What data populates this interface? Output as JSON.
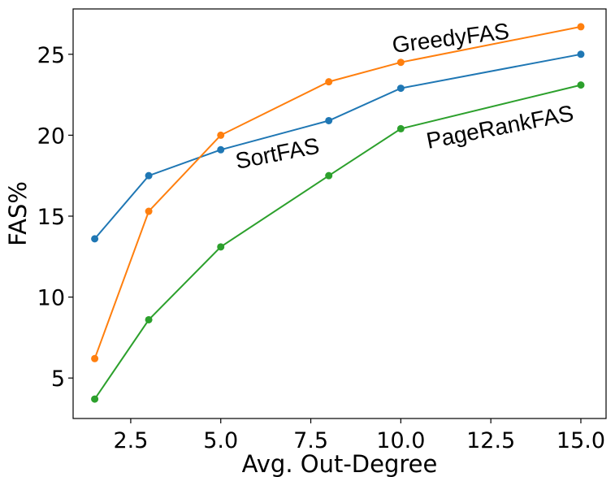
{
  "chart_data": {
    "type": "line",
    "xlabel": "Avg. Out-Degree",
    "ylabel": "FAS%",
    "xlim": [
      0.9,
      15.7
    ],
    "ylim": [
      2.5,
      27.8
    ],
    "xticks": [
      2.5,
      5.0,
      7.5,
      10.0,
      12.5,
      15.0
    ],
    "xtick_labels": [
      "2.5",
      "5.0",
      "7.5",
      "10.0",
      "12.5",
      "15.0"
    ],
    "yticks": [
      5,
      10,
      15,
      20,
      25
    ],
    "ytick_labels": [
      "5",
      "10",
      "15",
      "20",
      "25"
    ],
    "grid": false,
    "legend": "none",
    "series": [
      {
        "name": "SortFAS",
        "color": "#1f77b4",
        "x": [
          1.5,
          3.0,
          5.0,
          8.0,
          10.0,
          15.0
        ],
        "y": [
          13.6,
          17.5,
          19.1,
          20.9,
          22.9,
          25.0
        ]
      },
      {
        "name": "GreedyFAS",
        "color": "#ff7f0e",
        "x": [
          1.5,
          3.0,
          5.0,
          8.0,
          10.0,
          15.0
        ],
        "y": [
          6.2,
          15.3,
          20.0,
          23.3,
          24.5,
          26.7
        ]
      },
      {
        "name": "PageRankFAS",
        "color": "#2ca02c",
        "x": [
          1.5,
          3.0,
          5.0,
          8.0,
          10.0,
          15.0
        ],
        "y": [
          3.7,
          8.6,
          13.1,
          17.5,
          20.4,
          23.1
        ]
      }
    ]
  }
}
